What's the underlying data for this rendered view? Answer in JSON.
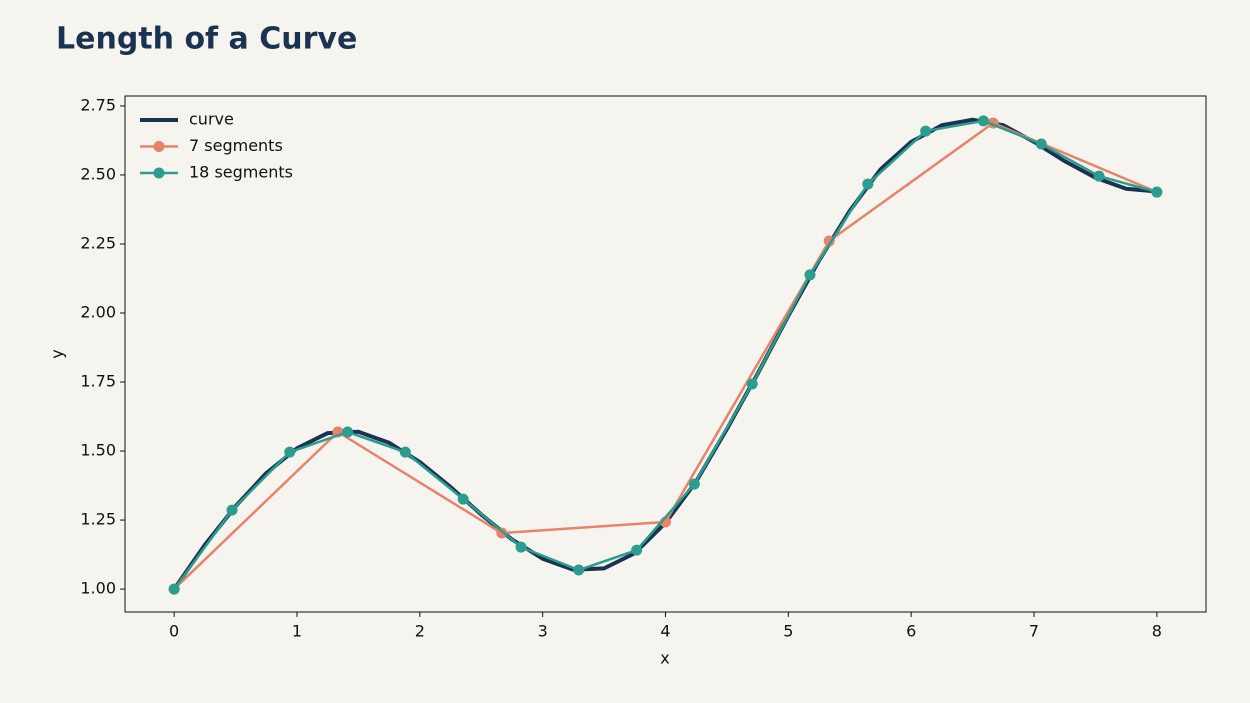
{
  "chart_data": {
    "type": "line",
    "title": "Length of a Curve",
    "xlabel": "x",
    "ylabel": "y",
    "xlim": [
      -0.4,
      8.4
    ],
    "ylim": [
      0.917,
      2.786
    ],
    "xticks": [
      0,
      1,
      2,
      3,
      4,
      5,
      6,
      7,
      8
    ],
    "yticks": [
      {
        "value": 1,
        "label": "1.00"
      },
      {
        "value": 1.25,
        "label": "1.25"
      },
      {
        "value": 1.5,
        "label": "1.50"
      },
      {
        "value": 1.75,
        "label": "1.75"
      },
      {
        "value": 2,
        "label": "2.00"
      },
      {
        "value": 2.25,
        "label": "2.25"
      },
      {
        "value": 2.5,
        "label": "2.50"
      },
      {
        "value": 2.75,
        "label": "2.75"
      }
    ],
    "legend": "upper left",
    "series": [
      {
        "name": "curve",
        "color": "#1b3352",
        "markers": false,
        "x": [
          0,
          0.25,
          0.5,
          0.75,
          1,
          1.25,
          1.5,
          1.75,
          2,
          2.25,
          2.5,
          2.75,
          3,
          3.25,
          3.5,
          3.75,
          4,
          4.25,
          4.5,
          4.75,
          5,
          5.25,
          5.5,
          5.75,
          6,
          6.25,
          6.5,
          6.75,
          7,
          7.25,
          7.5,
          7.75,
          8
        ],
        "values": [
          1.0,
          1.16,
          1.3,
          1.42,
          1.51,
          1.565,
          1.57,
          1.53,
          1.46,
          1.37,
          1.27,
          1.18,
          1.11,
          1.07,
          1.075,
          1.13,
          1.24,
          1.39,
          1.58,
          1.78,
          1.99,
          2.19,
          2.37,
          2.52,
          2.62,
          2.68,
          2.7,
          2.68,
          2.62,
          2.55,
          2.49,
          2.45,
          2.44
        ]
      },
      {
        "name": "7 segments",
        "color": "#e8836a",
        "markers": true,
        "x": [
          0,
          1.333,
          2.667,
          4,
          5.333,
          6.667,
          8
        ],
        "values": [
          1.0,
          1.569,
          1.203,
          1.243,
          2.261,
          2.688,
          2.438
        ]
      },
      {
        "name": "18 segments",
        "color": "#2a9d8f",
        "markers": true,
        "x": [
          0,
          0.471,
          0.941,
          1.412,
          1.882,
          2.353,
          2.824,
          3.294,
          3.765,
          4.235,
          4.706,
          5.176,
          5.647,
          6.118,
          6.588,
          7.059,
          7.529,
          8
        ],
        "values": [
          1.0,
          1.286,
          1.496,
          1.569,
          1.496,
          1.326,
          1.152,
          1.069,
          1.141,
          1.38,
          1.743,
          2.138,
          2.467,
          2.659,
          2.696,
          2.612,
          2.496,
          2.438
        ]
      }
    ]
  }
}
